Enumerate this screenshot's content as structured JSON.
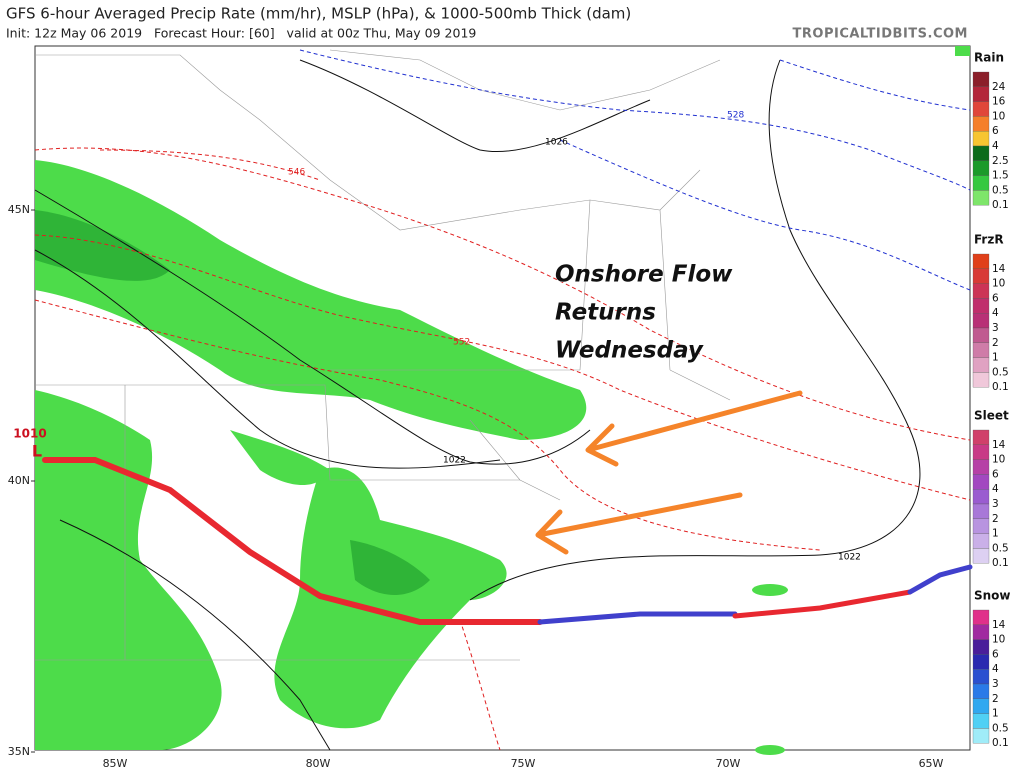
{
  "header": {
    "title": "GFS 6-hour Averaged Precip Rate (mm/hr), MSLP (hPa), & 1000-500mb Thick (dam)",
    "subtitle": "Init: 12z May 06 2019   Forecast Hour: [60]   valid at 00z Thu, May 09 2019",
    "site": "TROPICALTIDBITS.COM"
  },
  "axes": {
    "latitudes": [
      "45N",
      "40N",
      "35N"
    ],
    "longitudes": [
      "85W",
      "80W",
      "75W",
      "70W",
      "65W"
    ]
  },
  "contour_labels": [
    "1026",
    "528",
    "546",
    "552",
    "1022",
    "1022",
    "1010",
    "L"
  ],
  "annotation": [
    "Onshore Flow",
    "Returns",
    "Wednesday"
  ],
  "legends": [
    {
      "title": "Rain",
      "labels": [
        "24",
        "16",
        "10",
        "6",
        "4",
        "2.5",
        "1.5",
        "0.5",
        "0.1"
      ],
      "colors": [
        "#8b1f2a",
        "#b3263a",
        "#e0463a",
        "#f57f2a",
        "#f7c531",
        "#0b6b1a",
        "#1b9a2a",
        "#35c840",
        "#7ee56a"
      ]
    },
    {
      "title": "FrzR",
      "labels": [
        "14",
        "10",
        "6",
        "4",
        "3",
        "2",
        "1",
        "0.5",
        "0.1"
      ],
      "colors": [
        "#e0401a",
        "#d83a36",
        "#cc3456",
        "#c02e6c",
        "#b83076",
        "#c05a90",
        "#cf7ca8",
        "#e0a2c2",
        "#f0c8da"
      ]
    },
    {
      "title": "Sleet",
      "labels": [
        "14",
        "10",
        "6",
        "4",
        "3",
        "2",
        "1",
        "0.5",
        "0.1"
      ],
      "colors": [
        "#d0406a",
        "#c83a86",
        "#b640a6",
        "#a248c0",
        "#9a5cd0",
        "#a878d8",
        "#b894e0",
        "#cab0e8",
        "#ddd0f2"
      ]
    },
    {
      "title": "Snow",
      "labels": [
        "14",
        "10",
        "6",
        "4",
        "3",
        "2",
        "1",
        "0.5",
        "0.1"
      ],
      "colors": [
        "#e0308a",
        "#a02aa0",
        "#4a1e9a",
        "#2a2ab0",
        "#2a50d0",
        "#2a7ae8",
        "#30a8f0",
        "#50d0f4",
        "#a0ecf8"
      ]
    }
  ]
}
